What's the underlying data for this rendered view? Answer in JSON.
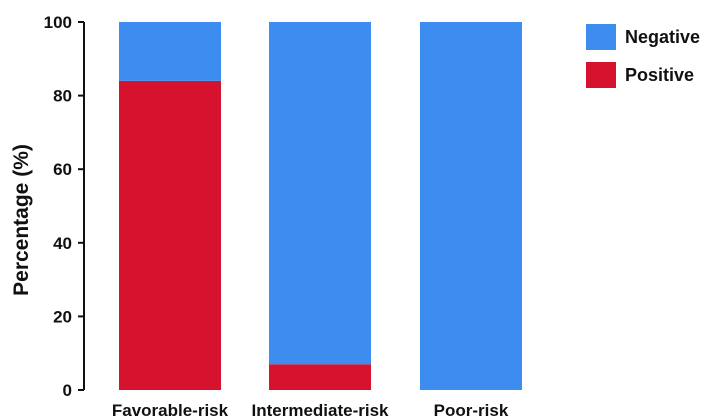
{
  "chart_data": {
    "type": "bar",
    "stacked": true,
    "categories": [
      "Favorable-risk",
      "Intermediate-risk",
      "Poor-risk"
    ],
    "series": [
      {
        "name": "Positive",
        "values": [
          84,
          7,
          0
        ],
        "color": "#d7122f"
      },
      {
        "name": "Negative",
        "values": [
          16,
          93,
          100
        ],
        "color": "#3d8df0"
      }
    ],
    "ylabel": "Percentage (%)",
    "ylim": [
      0,
      100
    ],
    "yticks": [
      0,
      20,
      40,
      60,
      80,
      100
    ],
    "grid": false,
    "legend_position": "top-right",
    "legend_order": [
      "Negative",
      "Positive"
    ]
  }
}
